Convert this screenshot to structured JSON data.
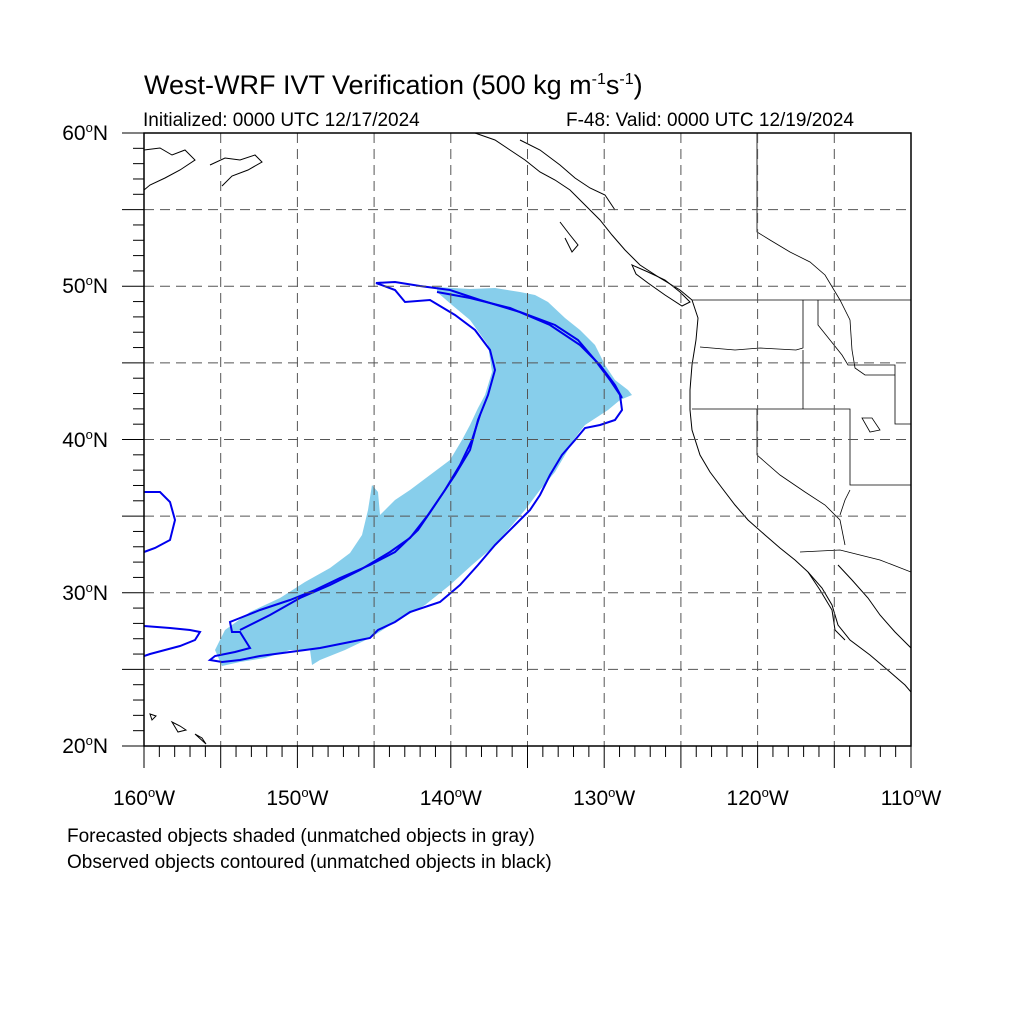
{
  "title": {
    "text_main": "West-WRF IVT Verification (500 kg m",
    "exp1": "-1",
    "mid": "s",
    "exp2": "-1",
    "close": ")"
  },
  "subtitle": {
    "initialized": "Initialized: 0000 UTC 12/17/2024",
    "valid": "F-48: Valid: 0000 UTC 12/19/2024"
  },
  "map": {
    "lat_min": 20,
    "lat_max": 60,
    "lon_min": -160,
    "lon_max": -110,
    "lat_ticks": [
      {
        "value": 60,
        "num": "60",
        "unit": "N"
      },
      {
        "value": 50,
        "num": "50",
        "unit": "N"
      },
      {
        "value": 40,
        "num": "40",
        "unit": "N"
      },
      {
        "value": 30,
        "num": "30",
        "unit": "N"
      },
      {
        "value": 20,
        "num": "20",
        "unit": "N"
      }
    ],
    "lon_ticks": [
      {
        "value": -160,
        "num": "160",
        "unit": "W"
      },
      {
        "value": -150,
        "num": "150",
        "unit": "W"
      },
      {
        "value": -140,
        "num": "140",
        "unit": "W"
      },
      {
        "value": -130,
        "num": "130",
        "unit": "W"
      },
      {
        "value": -120,
        "num": "120",
        "unit": "W"
      },
      {
        "value": -110,
        "num": "110",
        "unit": "W"
      }
    ],
    "grid_lat": [
      55,
      50,
      45,
      40,
      35,
      30,
      25
    ],
    "grid_lon": [
      -155,
      -150,
      -145,
      -140,
      -135,
      -130,
      -125,
      -120,
      -115
    ],
    "colors": {
      "forecast_fill": "#87ceeb",
      "observed_contour": "#0000ee",
      "coast": "#000000",
      "grid": "#555555"
    }
  },
  "footer": {
    "line1": "Forecasted objects shaded (unmatched objects in gray)",
    "line2": "Observed objects contoured (unmatched objects in black)"
  }
}
